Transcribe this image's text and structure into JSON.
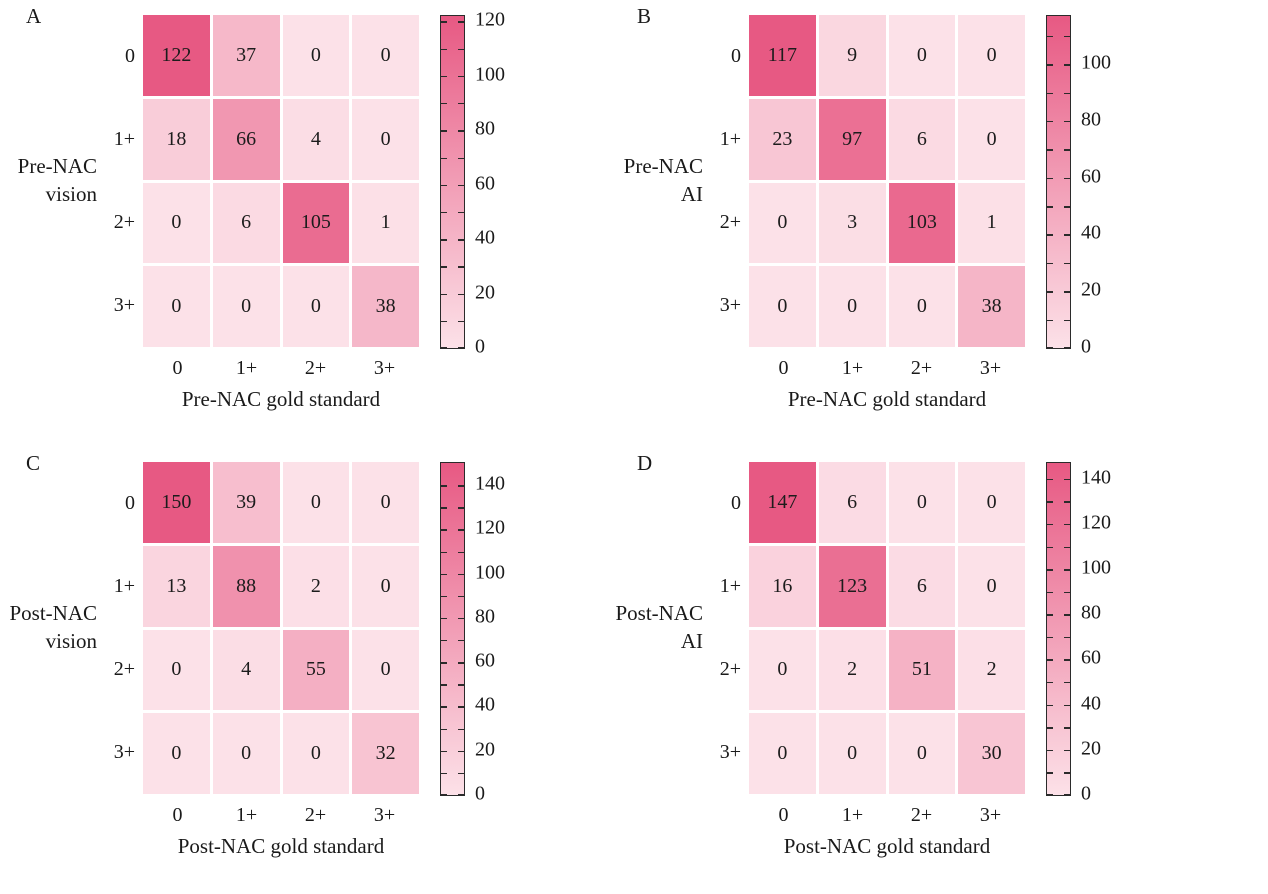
{
  "style": {
    "cmap_low": "#FCE1E8",
    "cmap_high": "#E75983",
    "text_color": "#1a1a1a",
    "colorbar_border": "#2b2b2b",
    "background": "#ffffff"
  },
  "chart_data": [
    {
      "type": "heatmap",
      "panel_label": "A",
      "ylabel": "Pre-NAC vision",
      "ylabel_lines": [
        "Pre-NAC",
        "vision"
      ],
      "xlabel": "Pre-NAC gold standard",
      "x_categories": [
        "0",
        "1+",
        "2+",
        "3+"
      ],
      "y_categories": [
        "0",
        "1+",
        "2+",
        "3+"
      ],
      "values": [
        [
          122,
          37,
          0,
          0
        ],
        [
          18,
          66,
          4,
          0
        ],
        [
          0,
          6,
          105,
          1
        ],
        [
          0,
          0,
          0,
          38
        ]
      ],
      "vmin": 0,
      "vmax": 122,
      "colorbar_labeled_ticks": [
        0,
        20,
        40,
        60,
        80,
        100,
        120
      ],
      "colorbar_minor_step": 10,
      "legend_position": "right",
      "grid": false
    },
    {
      "type": "heatmap",
      "panel_label": "B",
      "ylabel": "Pre-NAC AI",
      "ylabel_lines": [
        "Pre-NAC",
        "AI"
      ],
      "xlabel": "Pre-NAC gold standard",
      "x_categories": [
        "0",
        "1+",
        "2+",
        "3+"
      ],
      "y_categories": [
        "0",
        "1+",
        "2+",
        "3+"
      ],
      "values": [
        [
          117,
          9,
          0,
          0
        ],
        [
          23,
          97,
          6,
          0
        ],
        [
          0,
          3,
          103,
          1
        ],
        [
          0,
          0,
          0,
          38
        ]
      ],
      "vmin": 0,
      "vmax": 117,
      "colorbar_labeled_ticks": [
        0,
        20,
        40,
        60,
        80,
        100
      ],
      "colorbar_minor_step": 10,
      "legend_position": "right",
      "grid": false
    },
    {
      "type": "heatmap",
      "panel_label": "C",
      "ylabel": "Post-NAC vision",
      "ylabel_lines": [
        "Post-NAC",
        "vision"
      ],
      "xlabel": "Post-NAC gold standard",
      "x_categories": [
        "0",
        "1+",
        "2+",
        "3+"
      ],
      "y_categories": [
        "0",
        "1+",
        "2+",
        "3+"
      ],
      "values": [
        [
          150,
          39,
          0,
          0
        ],
        [
          13,
          88,
          2,
          0
        ],
        [
          0,
          4,
          55,
          0
        ],
        [
          0,
          0,
          0,
          32
        ]
      ],
      "vmin": 0,
      "vmax": 150,
      "colorbar_labeled_ticks": [
        0,
        20,
        40,
        60,
        80,
        100,
        120,
        140
      ],
      "colorbar_minor_step": 10,
      "legend_position": "right",
      "grid": false
    },
    {
      "type": "heatmap",
      "panel_label": "D",
      "ylabel": "Post-NAC AI",
      "ylabel_lines": [
        "Post-NAC",
        "AI"
      ],
      "xlabel": "Post-NAC gold standard",
      "x_categories": [
        "0",
        "1+",
        "2+",
        "3+"
      ],
      "y_categories": [
        "0",
        "1+",
        "2+",
        "3+"
      ],
      "values": [
        [
          147,
          6,
          0,
          0
        ],
        [
          16,
          123,
          6,
          0
        ],
        [
          0,
          2,
          51,
          2
        ],
        [
          0,
          0,
          0,
          30
        ]
      ],
      "vmin": 0,
      "vmax": 147,
      "colorbar_labeled_ticks": [
        0,
        20,
        40,
        60,
        80,
        100,
        120,
        140
      ],
      "colorbar_minor_step": 10,
      "legend_position": "right",
      "grid": false
    }
  ]
}
